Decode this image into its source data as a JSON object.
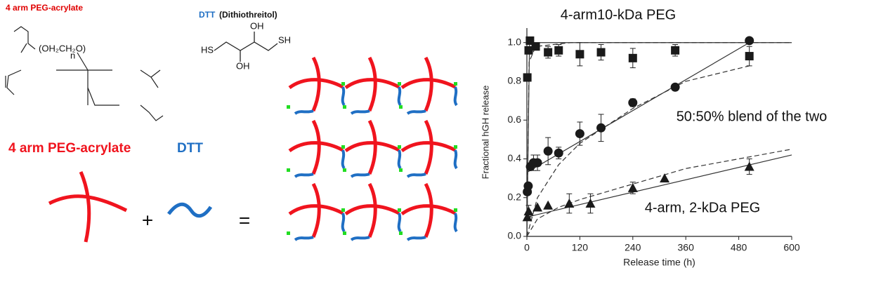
{
  "figure": {
    "peg_caption": "4 arm PEG-acrylate",
    "dtt_caption": "DTT",
    "dtt_name": "(Dithiothreitol)",
    "dtt_atoms": [
      "OH",
      "HS",
      "SH",
      "OH"
    ],
    "peg_unit": "(OH₂CH₂O)",
    "peg_n": "n",
    "legend_peg": "4 arm PEG-acrylate",
    "legend_dtt": "DTT",
    "plus": "+",
    "equals": "="
  },
  "chart_data": {
    "type": "scatter",
    "x_label": "Release time (h)",
    "y_label": "Fractional hGH release",
    "xlim": [
      0,
      600
    ],
    "ylim": [
      0,
      1.075
    ],
    "xticks": [
      0,
      120,
      240,
      360,
      480,
      600
    ],
    "yticks": [
      {
        "value": 0,
        "label": "0.0"
      },
      0.2,
      0.4,
      0.6,
      0.8,
      {
        "value": 1,
        "label": "1.0"
      }
    ],
    "series": [
      {
        "name": "4-arm10-kDa PEG",
        "marker": "square",
        "color": "#1a1a1a",
        "x": [
          1,
          4,
          7,
          20,
          48,
          72,
          120,
          168,
          240,
          336,
          504
        ],
        "values": [
          0.82,
          0.96,
          1.01,
          0.98,
          0.95,
          0.96,
          0.94,
          0.95,
          0.92,
          0.96,
          0.93
        ],
        "errors": [
          null,
          null,
          null,
          null,
          0.03,
          0.03,
          0.06,
          0.04,
          0.05,
          0.03,
          0.05
        ]
      },
      {
        "name": "50:50% blend of the two",
        "marker": "circle",
        "color": "#1a1a1a",
        "x": [
          1,
          3,
          8,
          15,
          24,
          48,
          72,
          120,
          168,
          240,
          336,
          504
        ],
        "values": [
          0.23,
          0.26,
          0.36,
          0.38,
          0.38,
          0.44,
          0.43,
          0.53,
          0.56,
          0.69,
          0.77,
          1.01
        ],
        "errors": [
          null,
          null,
          null,
          0.04,
          0.04,
          0.07,
          0.03,
          0.06,
          0.07,
          0.02,
          null,
          null
        ]
      },
      {
        "name": "4-arm, 2-kDa PEG",
        "marker": "triangle",
        "color": "#1a1a1a",
        "x": [
          1,
          4,
          24,
          48,
          96,
          144,
          240,
          312,
          504
        ],
        "values": [
          0.1,
          0.13,
          0.15,
          0.16,
          0.17,
          0.17,
          0.25,
          0.3,
          0.36
        ],
        "errors": [
          null,
          0.03,
          null,
          null,
          0.05,
          0.05,
          0.03,
          null,
          0.04
        ]
      }
    ],
    "fits": [
      {
        "style": "solid",
        "x": [
          0,
          6,
          600
        ],
        "values": [
          0,
          1.0,
          1.0
        ]
      },
      {
        "style": "dashed",
        "x": [
          0,
          5,
          20,
          100,
          600
        ],
        "values": [
          0,
          0.9,
          0.98,
          1.0,
          1.0
        ]
      },
      {
        "style": "solid",
        "x": [
          0,
          504
        ],
        "values": [
          0.33,
          1.0
        ]
      },
      {
        "style": "dashed",
        "x": [
          0,
          24,
          72,
          120,
          240,
          360,
          504
        ],
        "values": [
          0,
          0.2,
          0.37,
          0.48,
          0.66,
          0.8,
          0.88
        ]
      },
      {
        "style": "solid",
        "x": [
          0,
          600
        ],
        "values": [
          0.1,
          0.42
        ]
      },
      {
        "style": "dashed",
        "x": [
          0,
          24,
          72,
          120,
          240,
          360,
          600
        ],
        "values": [
          0,
          0.09,
          0.15,
          0.19,
          0.27,
          0.35,
          0.45
        ]
      }
    ]
  }
}
